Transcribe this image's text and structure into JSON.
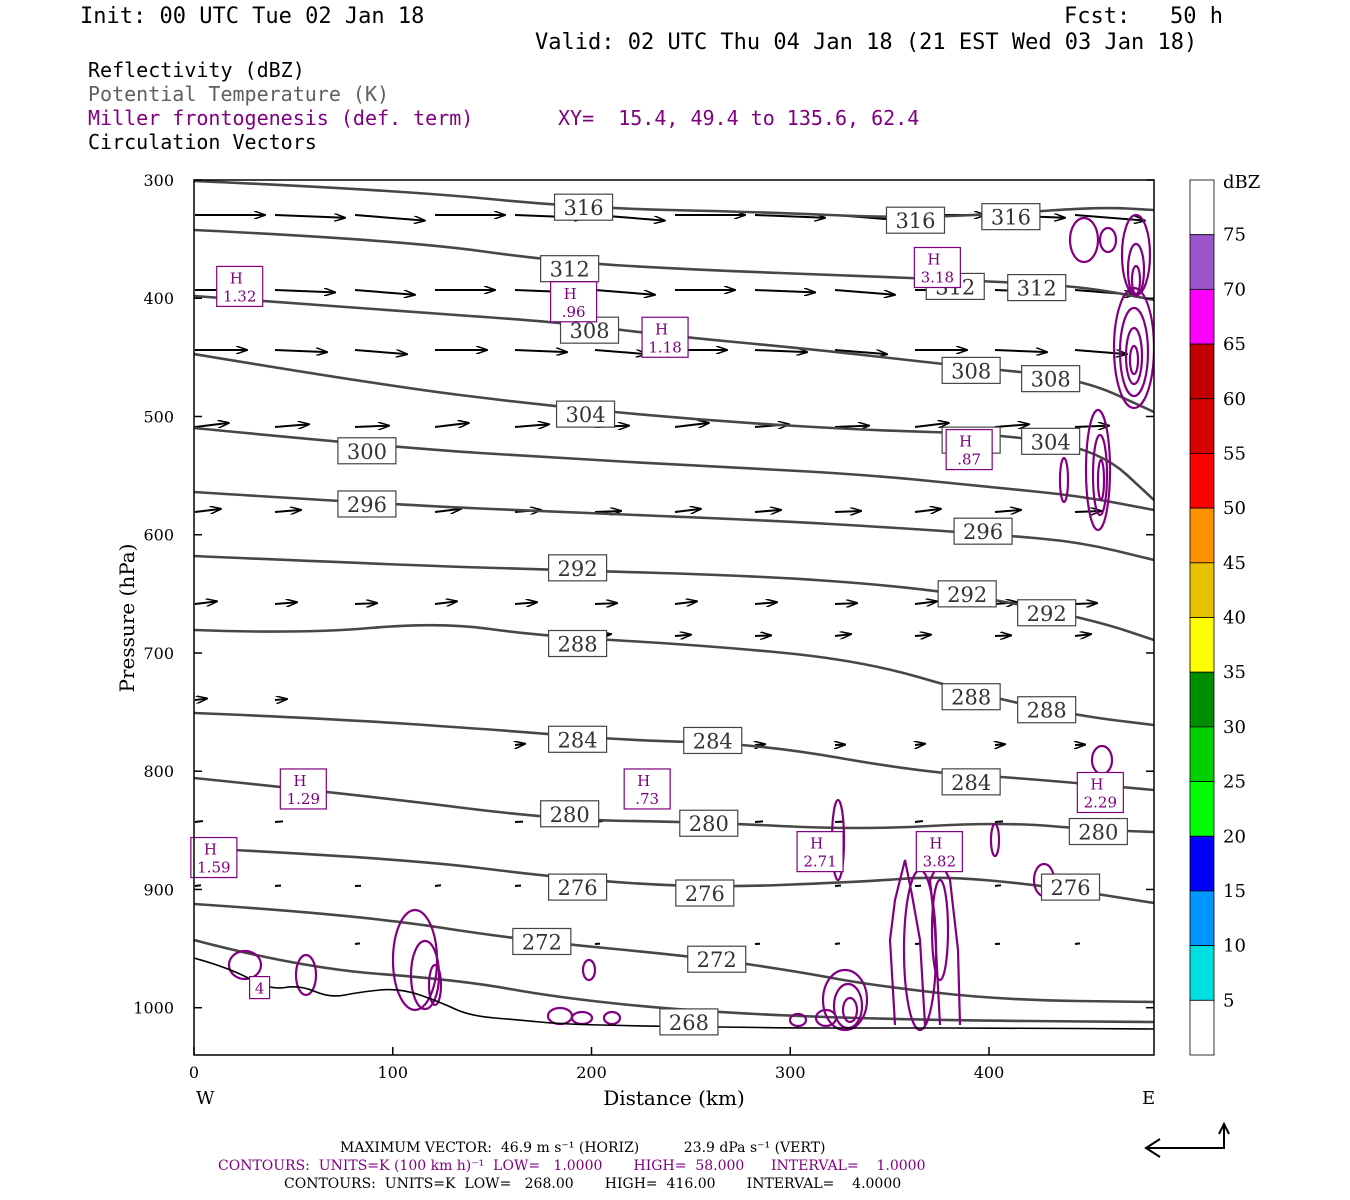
{
  "header": {
    "init": "Init: 00 UTC Tue 02 Jan 18",
    "fcst": "Fcst:   50 h",
    "valid": "Valid: 02 UTC Thu 04 Jan 18 (21 EST Wed 03 Jan 18)"
  },
  "legend": {
    "line1": "Reflectivity (dBZ)",
    "line2": "Potential Temperature (K)",
    "line3": "Miller frontogenesis (def. term)",
    "xy": "XY=  15.4, 49.4 to 135.6, 62.4",
    "line4": "Circulation Vectors"
  },
  "colors": {
    "theta": "#474747",
    "fronto": "#800080",
    "gray_text": "#606060"
  },
  "chart_data": {
    "type": "line",
    "xlabel": "Distance (km)",
    "ylabel": "Pressure (hPa)",
    "xlim": [
      0,
      483
    ],
    "ylim": [
      1040,
      300
    ],
    "x_ticks": [
      0,
      100,
      200,
      300,
      400
    ],
    "y_ticks": [
      300,
      400,
      500,
      600,
      700,
      800,
      900,
      1000
    ],
    "x_end_labels": {
      "left": "W",
      "right": "E"
    },
    "isentrope_labels": [
      {
        "text": "316",
        "x": 196,
        "y": 323
      },
      {
        "text": "316",
        "x": 363,
        "y": 334
      },
      {
        "text": "316",
        "x": 411,
        "y": 331
      },
      {
        "text": "312",
        "x": 189,
        "y": 375
      },
      {
        "text": "312",
        "x": 383,
        "y": 390
      },
      {
        "text": "312",
        "x": 424,
        "y": 391
      },
      {
        "text": "308",
        "x": 199,
        "y": 427
      },
      {
        "text": "308",
        "x": 391,
        "y": 461
      },
      {
        "text": "308",
        "x": 431,
        "y": 468
      },
      {
        "text": "304",
        "x": 197,
        "y": 498
      },
      {
        "text": "304",
        "x": 391,
        "y": 520
      },
      {
        "text": "304",
        "x": 431,
        "y": 521
      },
      {
        "text": "300",
        "x": 87,
        "y": 529
      },
      {
        "text": "296",
        "x": 87,
        "y": 574
      },
      {
        "text": "296",
        "x": 397,
        "y": 597
      },
      {
        "text": "292",
        "x": 193,
        "y": 628
      },
      {
        "text": "292",
        "x": 389,
        "y": 650
      },
      {
        "text": "292",
        "x": 429,
        "y": 666
      },
      {
        "text": "288",
        "x": 193,
        "y": 692
      },
      {
        "text": "288",
        "x": 391,
        "y": 737
      },
      {
        "text": "288",
        "x": 429,
        "y": 748
      },
      {
        "text": "284",
        "x": 193,
        "y": 773
      },
      {
        "text": "284",
        "x": 261,
        "y": 774
      },
      {
        "text": "284",
        "x": 391,
        "y": 809
      },
      {
        "text": "280",
        "x": 189,
        "y": 836
      },
      {
        "text": "280",
        "x": 259,
        "y": 844
      },
      {
        "text": "280",
        "x": 455,
        "y": 851
      },
      {
        "text": "276",
        "x": 193,
        "y": 898
      },
      {
        "text": "276",
        "x": 257,
        "y": 903
      },
      {
        "text": "276",
        "x": 441,
        "y": 898
      },
      {
        "text": "272",
        "x": 175,
        "y": 944
      },
      {
        "text": "272",
        "x": 263,
        "y": 959
      },
      {
        "text": "268",
        "x": 249,
        "y": 1012
      }
    ],
    "frontogenesis_maxima": [
      {
        "label": "H",
        "value": "1.32",
        "x": 23,
        "y": 390
      },
      {
        "label": "H",
        "value": ".96",
        "x": 191,
        "y": 403
      },
      {
        "label": "H",
        "value": "1.18",
        "x": 237,
        "y": 433
      },
      {
        "label": "H",
        "value": "3.18",
        "x": 374,
        "y": 374
      },
      {
        "label": "H",
        "value": ".87",
        "x": 390,
        "y": 528
      },
      {
        "label": "H",
        "value": "1.29",
        "x": 55,
        "y": 815
      },
      {
        "label": "H",
        "value": ".73",
        "x": 228,
        "y": 815
      },
      {
        "label": "H",
        "value": "2.29",
        "x": 456,
        "y": 818
      },
      {
        "label": "H",
        "value": "1.59",
        "x": 10,
        "y": 873
      },
      {
        "label": "H",
        "value": "2.71",
        "x": 315,
        "y": 868
      },
      {
        "label": "H",
        "value": "3.82",
        "x": 375,
        "y": 868
      },
      {
        "label": "",
        "value": "4",
        "x": 33,
        "y": 983
      }
    ],
    "reflectivity_scale": {
      "title": "dBZ",
      "labels": [
        "5",
        "10",
        "15",
        "20",
        "25",
        "30",
        "35",
        "40",
        "45",
        "50",
        "55",
        "60",
        "65",
        "70",
        "75"
      ],
      "colors": [
        "#ffffff",
        "#00e0e0",
        "#0096ff",
        "#0000ff",
        "#00ff00",
        "#00d000",
        "#008e00",
        "#ffff00",
        "#e7c000",
        "#ff9000",
        "#ff0000",
        "#d60000",
        "#c00000",
        "#ff00ff",
        "#9955c9",
        "#ffffff"
      ]
    }
  },
  "footer": {
    "max_vector": "MAXIMUM VECTOR:  46.9 m s⁻¹ (HORIZ)          23.9 dPa s⁻¹ (VERT)",
    "contours1": "CONTOURS:  UNITS=K (100 km h)⁻¹  LOW=   1.0000       HIGH=  58.000      INTERVAL=    1.0000",
    "contours2": "CONTOURS:  UNITS=K  LOW=   268.00       HIGH=  416.00       INTERVAL=    4.0000"
  }
}
